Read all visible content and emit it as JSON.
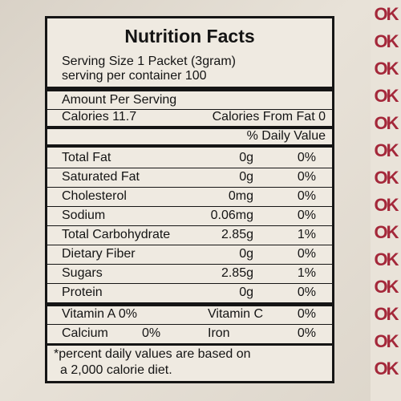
{
  "label": {
    "title": "Nutrition Facts",
    "serving_size": "Serving Size 1 Packet (3gram)",
    "servings_per_container": "serving per container 100",
    "amount_per_serving": "Amount Per Serving",
    "calories": "Calories 11.7",
    "calories_from_fat": "Calories From Fat 0",
    "daily_value_header": "% Daily Value",
    "nutrients": [
      {
        "name": "Total Fat",
        "amount": "0g",
        "dv": "0%"
      },
      {
        "name": "Saturated Fat",
        "amount": "0g",
        "dv": "0%"
      },
      {
        "name": "Cholesterol",
        "amount": "0mg",
        "dv": "0%"
      },
      {
        "name": "Sodium",
        "amount": "0.06mg",
        "dv": "0%"
      },
      {
        "name": "Total Carbohydrate",
        "amount": "2.85g",
        "dv": "1%"
      },
      {
        "name": "Dietary Fiber",
        "amount": "0g",
        "dv": "0%"
      },
      {
        "name": "Sugars",
        "amount": "2.85g",
        "dv": "1%"
      },
      {
        "name": "Protein",
        "amount": "0g",
        "dv": "0%"
      }
    ],
    "vitamins": [
      {
        "left_name": "Vitamin A 0%",
        "right_name": "Vitamin C",
        "right_dv": "0%"
      },
      {
        "left_name": "Calcium",
        "left_dv": "0%",
        "right_name": "Iron",
        "right_dv": "0%"
      }
    ],
    "footnote_line1": "*percent daily values are based on",
    "footnote_line2": "a 2,000 calorie diet."
  },
  "colors": {
    "ink": "#141414",
    "accent_red": "#a4283a",
    "paper": "#efeae1"
  }
}
